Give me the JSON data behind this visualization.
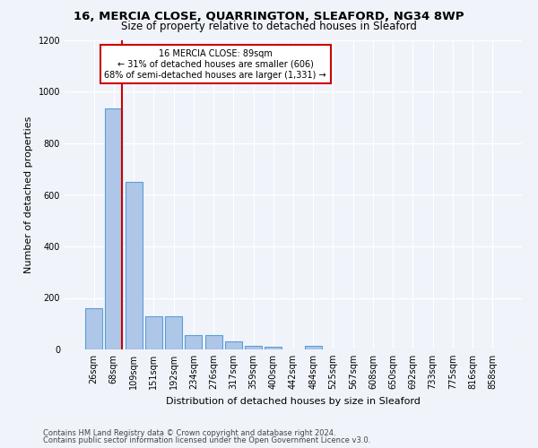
{
  "title1": "16, MERCIA CLOSE, QUARRINGTON, SLEAFORD, NG34 8WP",
  "title2": "Size of property relative to detached houses in Sleaford",
  "xlabel": "Distribution of detached houses by size in Sleaford",
  "ylabel": "Number of detached properties",
  "footnote1": "Contains HM Land Registry data © Crown copyright and database right 2024.",
  "footnote2": "Contains public sector information licensed under the Open Government Licence v3.0.",
  "bar_labels": [
    "26sqm",
    "68sqm",
    "109sqm",
    "151sqm",
    "192sqm",
    "234sqm",
    "276sqm",
    "317sqm",
    "359sqm",
    "400sqm",
    "442sqm",
    "484sqm",
    "525sqm",
    "567sqm",
    "608sqm",
    "650sqm",
    "692sqm",
    "733sqm",
    "775sqm",
    "816sqm",
    "858sqm"
  ],
  "bar_values": [
    160,
    935,
    650,
    130,
    130,
    55,
    55,
    30,
    15,
    10,
    0,
    15,
    0,
    0,
    0,
    0,
    0,
    0,
    0,
    0,
    0
  ],
  "bar_color": "#aec6e8",
  "bar_edge_color": "#5a9ed6",
  "vline_color": "#cc0000",
  "annotation_text": "16 MERCIA CLOSE: 89sqm\n← 31% of detached houses are smaller (606)\n68% of semi-detached houses are larger (1,331) →",
  "annotation_box_color": "#cc0000",
  "annotation_text_color": "black",
  "ylim": [
    0,
    1200
  ],
  "yticks": [
    0,
    200,
    400,
    600,
    800,
    1000,
    1200
  ],
  "background_color": "#f0f4fa",
  "plot_bg_color": "#f0f4fa",
  "grid_color": "#ffffff",
  "title1_fontsize": 9.5,
  "title2_fontsize": 8.5,
  "xlabel_fontsize": 8,
  "ylabel_fontsize": 8,
  "tick_fontsize": 7,
  "annot_fontsize": 7,
  "footnote_fontsize": 6
}
